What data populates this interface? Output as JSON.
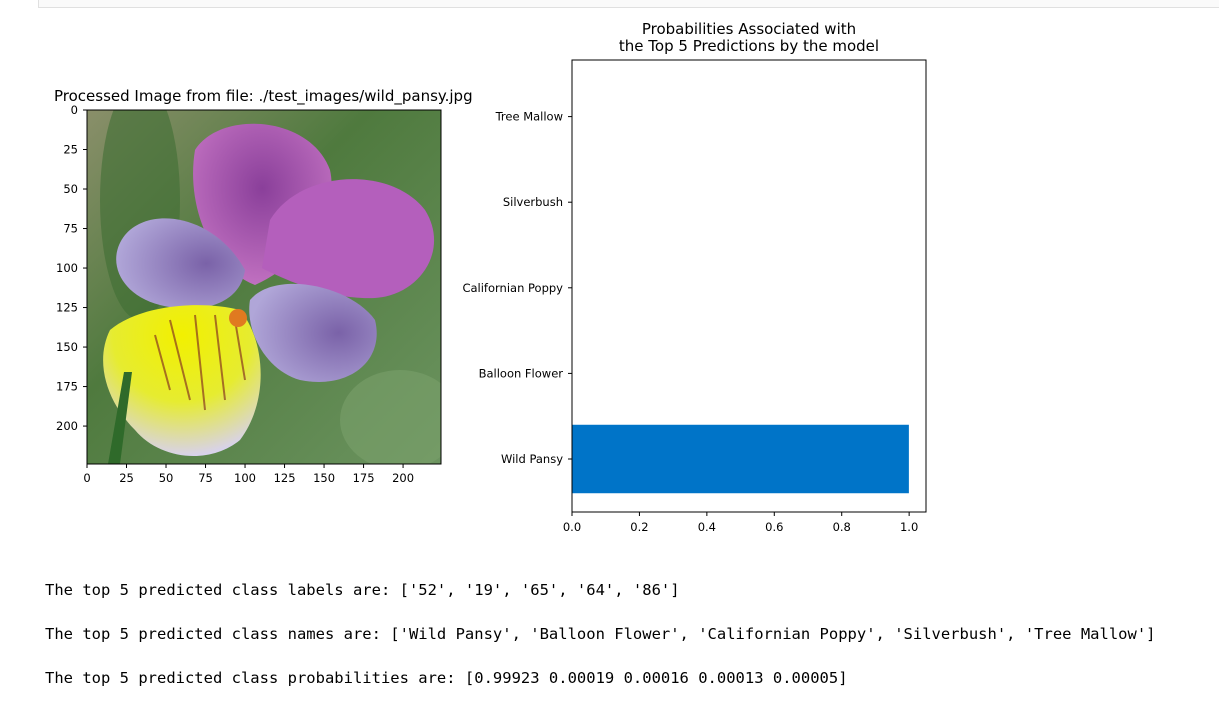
{
  "image_panel": {
    "title": "Processed Image from file: ./test_images/wild_pansy.jpg",
    "x_ticks": [
      "0",
      "25",
      "50",
      "75",
      "100",
      "125",
      "150",
      "175",
      "200"
    ],
    "y_ticks": [
      "0",
      "25",
      "50",
      "75",
      "100",
      "125",
      "150",
      "175",
      "200"
    ],
    "colors": {
      "background": "#5f8a4e",
      "petal_purple": "#a55ab4",
      "petal_lavender": "#9a8ac4",
      "yellow": "#e8ee10"
    }
  },
  "chart_data": {
    "type": "bar",
    "orientation": "horizontal",
    "title": "Probabilities Associated with\nthe Top 5 Predictions by the model",
    "title_lines": [
      "Probabilities Associated with",
      "the Top 5 Predictions by the model"
    ],
    "categories": [
      "Wild Pansy",
      "Balloon Flower",
      "Californian Poppy",
      "Silverbush",
      "Tree Mallow"
    ],
    "values": [
      0.99923,
      0.00019,
      0.00016,
      0.00013,
      5e-05
    ],
    "x_ticks": [
      "0.0",
      "0.2",
      "0.4",
      "0.6",
      "0.8",
      "1.0"
    ],
    "xlim": [
      0.0,
      1.05
    ],
    "xlabel": "",
    "ylabel": "",
    "bar_color": "#0074c8",
    "grid": false
  },
  "output_lines": [
    "The top 5 predicted class labels are: ['52', '19', '65', '64', '86']",
    "The top 5 predicted class names are: ['Wild Pansy', 'Balloon Flower', 'Californian Poppy', 'Silverbush', 'Tree Mallow']",
    "The top 5 predicted class probabilities are: [0.99923 0.00019 0.00016 0.00013 0.00005]"
  ]
}
